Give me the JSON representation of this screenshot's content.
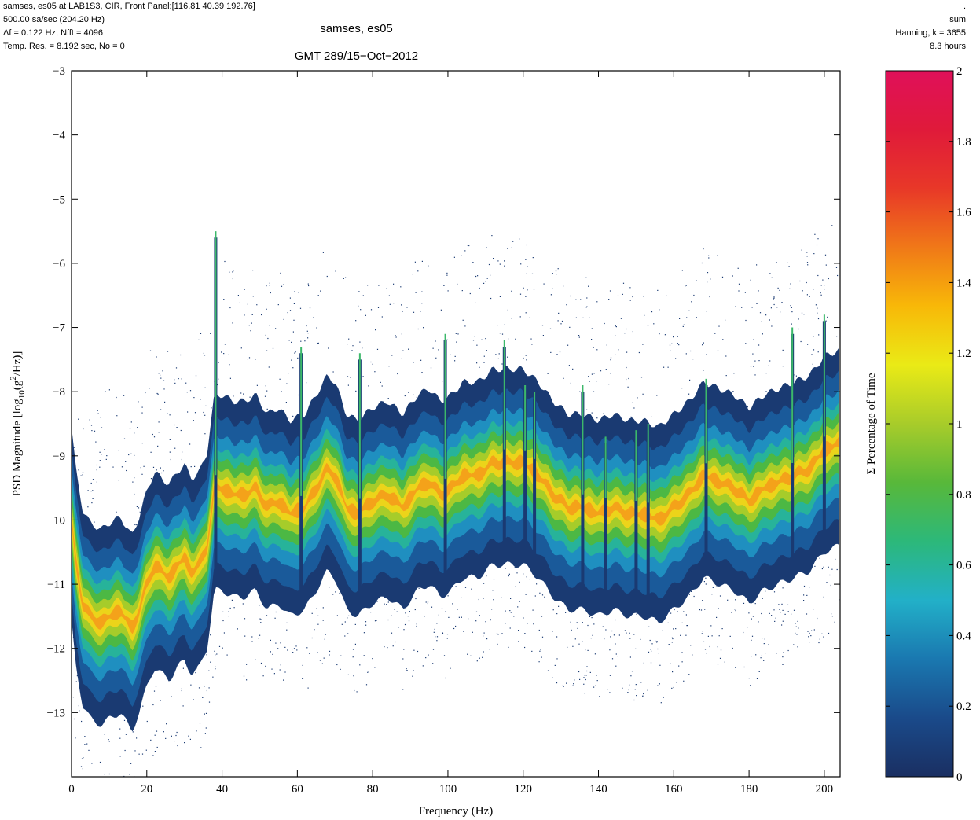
{
  "header": {
    "left_lines": [
      "samses, es05 at LAB1S3, CIR, Front Panel:[116.81 40.39 192.76]",
      "500.00 sa/sec (204.20 Hz)",
      "Δf = 0.122 Hz, Nfft = 4096",
      "Temp. Res. = 8.192 sec, No = 0"
    ],
    "right_lines": [
      ".",
      "sum",
      "Hanning, k = 3655",
      "8.3 hours"
    ],
    "title": "samses, es05",
    "subtitle": "GMT 289/15−Oct−2012"
  },
  "chart_data": {
    "type": "heatmap",
    "xlabel": "Frequency (Hz)",
    "ylabel_parts": [
      "PSD Magnitude [log",
      "10",
      "(g",
      "2",
      "/Hz)]"
    ],
    "xlim": [
      0,
      204.2
    ],
    "ylim": [
      -14,
      -3
    ],
    "xticks": [
      0,
      20,
      40,
      60,
      80,
      100,
      120,
      140,
      160,
      180,
      200
    ],
    "xtick_labels": [
      "0",
      "20",
      "40",
      "60",
      "80",
      "100",
      "120",
      "140",
      "160",
      "180",
      "200"
    ],
    "yticks": [
      -13,
      -12,
      -11,
      -10,
      -9,
      -8,
      -7,
      -6,
      -5,
      -4,
      -3
    ],
    "ytick_labels": [
      "−13",
      "−12",
      "−11",
      "−10",
      "−9",
      "−8",
      "−7",
      "−6",
      "−5",
      "−4",
      "−3"
    ],
    "colorbar": {
      "label": "Σ Percentage of Time",
      "range": [
        0,
        2
      ],
      "ticks": [
        0,
        0.2,
        0.4,
        0.6,
        0.8,
        1,
        1.2,
        1.4,
        1.6,
        1.8,
        2
      ],
      "tick_labels": [
        "0",
        "0.2",
        "0.4",
        "0.6",
        "0.8",
        "1",
        "1.2",
        "1.4",
        "1.6",
        "1.8",
        "2"
      ],
      "colors": [
        "#1a2f62",
        "#1a4a8a",
        "#1a78b0",
        "#22b0c8",
        "#2cb87a",
        "#58b83a",
        "#a8cc2a",
        "#eaea16",
        "#f8b808",
        "#f07818",
        "#e83828",
        "#e01a3a",
        "#e0105a"
      ]
    },
    "ridge": [
      [
        0,
        -10.0
      ],
      [
        1,
        -10.6
      ],
      [
        3,
        -11.3
      ],
      [
        5,
        -11.5
      ],
      [
        8,
        -11.6
      ],
      [
        10,
        -11.5
      ],
      [
        13,
        -11.4
      ],
      [
        16,
        -11.7
      ],
      [
        18,
        -11.4
      ],
      [
        20,
        -11.0
      ],
      [
        22,
        -10.7
      ],
      [
        24,
        -10.8
      ],
      [
        26,
        -10.9
      ],
      [
        28,
        -10.7
      ],
      [
        30,
        -10.6
      ],
      [
        32,
        -10.8
      ],
      [
        34,
        -10.7
      ],
      [
        36,
        -10.4
      ],
      [
        38,
        -9.5
      ],
      [
        40,
        -9.5
      ],
      [
        43,
        -9.6
      ],
      [
        46,
        -9.6
      ],
      [
        49,
        -9.5
      ],
      [
        52,
        -9.8
      ],
      [
        55,
        -9.7
      ],
      [
        58,
        -9.9
      ],
      [
        62,
        -9.8
      ],
      [
        65,
        -9.5
      ],
      [
        68,
        -9.2
      ],
      [
        70,
        -9.3
      ],
      [
        73,
        -9.8
      ],
      [
        76,
        -9.9
      ],
      [
        80,
        -9.7
      ],
      [
        84,
        -9.6
      ],
      [
        88,
        -9.8
      ],
      [
        92,
        -9.5
      ],
      [
        95,
        -9.4
      ],
      [
        98,
        -9.6
      ],
      [
        101,
        -9.5
      ],
      [
        104,
        -9.3
      ],
      [
        108,
        -9.3
      ],
      [
        112,
        -9.1
      ],
      [
        116,
        -9.1
      ],
      [
        120,
        -9.1
      ],
      [
        124,
        -9.3
      ],
      [
        128,
        -9.6
      ],
      [
        132,
        -9.8
      ],
      [
        136,
        -9.8
      ],
      [
        140,
        -9.9
      ],
      [
        144,
        -9.8
      ],
      [
        148,
        -9.9
      ],
      [
        152,
        -9.9
      ],
      [
        156,
        -10.0
      ],
      [
        160,
        -9.8
      ],
      [
        164,
        -9.6
      ],
      [
        168,
        -9.3
      ],
      [
        172,
        -9.4
      ],
      [
        176,
        -9.5
      ],
      [
        180,
        -9.7
      ],
      [
        184,
        -9.5
      ],
      [
        188,
        -9.4
      ],
      [
        192,
        -9.3
      ],
      [
        196,
        -9.2
      ],
      [
        200,
        -8.9
      ],
      [
        204.2,
        -8.8
      ]
    ],
    "spikes": [
      {
        "freq": 38.3,
        "top": -5.6
      },
      {
        "freq": 61.0,
        "top": -7.4
      },
      {
        "freq": 76.6,
        "top": -7.5
      },
      {
        "freq": 99.3,
        "top": -7.2
      },
      {
        "freq": 115.0,
        "top": -7.3
      },
      {
        "freq": 120.5,
        "top": -8.0
      },
      {
        "freq": 123.0,
        "top": -8.1
      },
      {
        "freq": 135.8,
        "top": -8.0
      },
      {
        "freq": 141.9,
        "top": -8.8
      },
      {
        "freq": 150.0,
        "top": -8.7
      },
      {
        "freq": 153.2,
        "top": -8.6
      },
      {
        "freq": 168.6,
        "top": -7.9
      },
      {
        "freq": 191.5,
        "top": -7.1
      },
      {
        "freq": 200.0,
        "top": -6.9
      }
    ]
  }
}
